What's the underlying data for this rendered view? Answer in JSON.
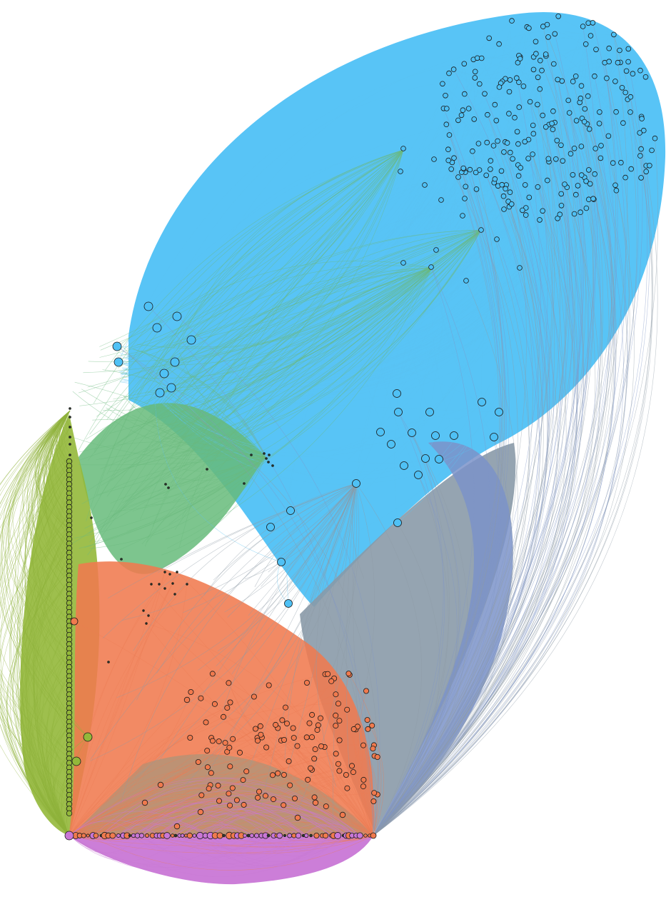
{
  "diagram": {
    "type": "network-graph",
    "edge_style": "curved",
    "background": "#ffffff",
    "node_stroke": "#1a1a1a",
    "clusters": [
      {
        "id": "blue",
        "color": "#4fc1f5",
        "edge_color": "#5bc2f2"
      },
      {
        "id": "green",
        "color": "#66bb7a",
        "edge_color": "#6cba7e"
      },
      {
        "id": "olive",
        "color": "#93b83a",
        "edge_color": "#8fb33c"
      },
      {
        "id": "orange",
        "color": "#f07a4e",
        "edge_color": "#ee7d56"
      },
      {
        "id": "purple",
        "color": "#c977d6",
        "edge_color": "#c97ad3"
      },
      {
        "id": "slate",
        "color": "#7b93c9",
        "edge_color": "#7f96c6"
      },
      {
        "id": "gray",
        "color": "#8a9aa8",
        "edge_color": "#8e9ba6"
      }
    ]
  }
}
